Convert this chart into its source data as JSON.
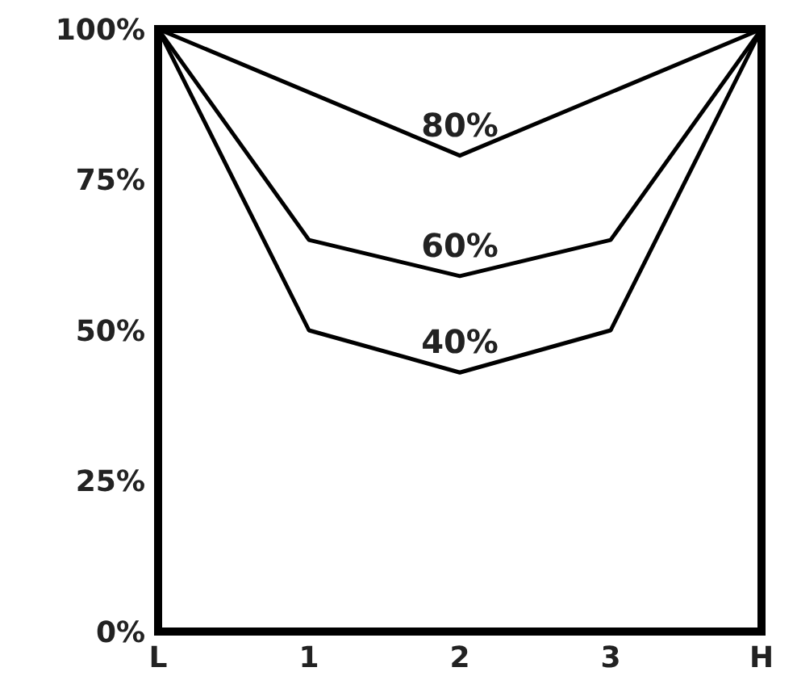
{
  "chart_data": {
    "type": "line",
    "xlim": [
      0,
      4
    ],
    "xticks": [
      {
        "value": 0,
        "label": "L"
      },
      {
        "value": 1,
        "label": "1"
      },
      {
        "value": 2,
        "label": "2"
      },
      {
        "value": 3,
        "label": "3"
      },
      {
        "value": 4,
        "label": "H"
      }
    ],
    "ylim": [
      0,
      100
    ],
    "yticks": [
      {
        "value": 0,
        "label": "0%"
      },
      {
        "value": 25,
        "label": "25%"
      },
      {
        "value": 50,
        "label": "50%"
      },
      {
        "value": 75,
        "label": "75%"
      },
      {
        "value": 100,
        "label": "100%"
      }
    ],
    "grid": false,
    "marker": "none",
    "line_style": "solid",
    "series": [
      {
        "name": "80%",
        "color": "#000000",
        "x": [
          0,
          2,
          4
        ],
        "values": [
          100,
          79,
          100
        ]
      },
      {
        "name": "60%",
        "color": "#000000",
        "x": [
          0,
          1,
          2,
          3,
          4
        ],
        "values": [
          100,
          65,
          59,
          65,
          100
        ]
      },
      {
        "name": "40%",
        "color": "#000000",
        "x": [
          0,
          1,
          2,
          3,
          4
        ],
        "values": [
          100,
          50,
          43,
          50,
          100
        ]
      }
    ]
  }
}
